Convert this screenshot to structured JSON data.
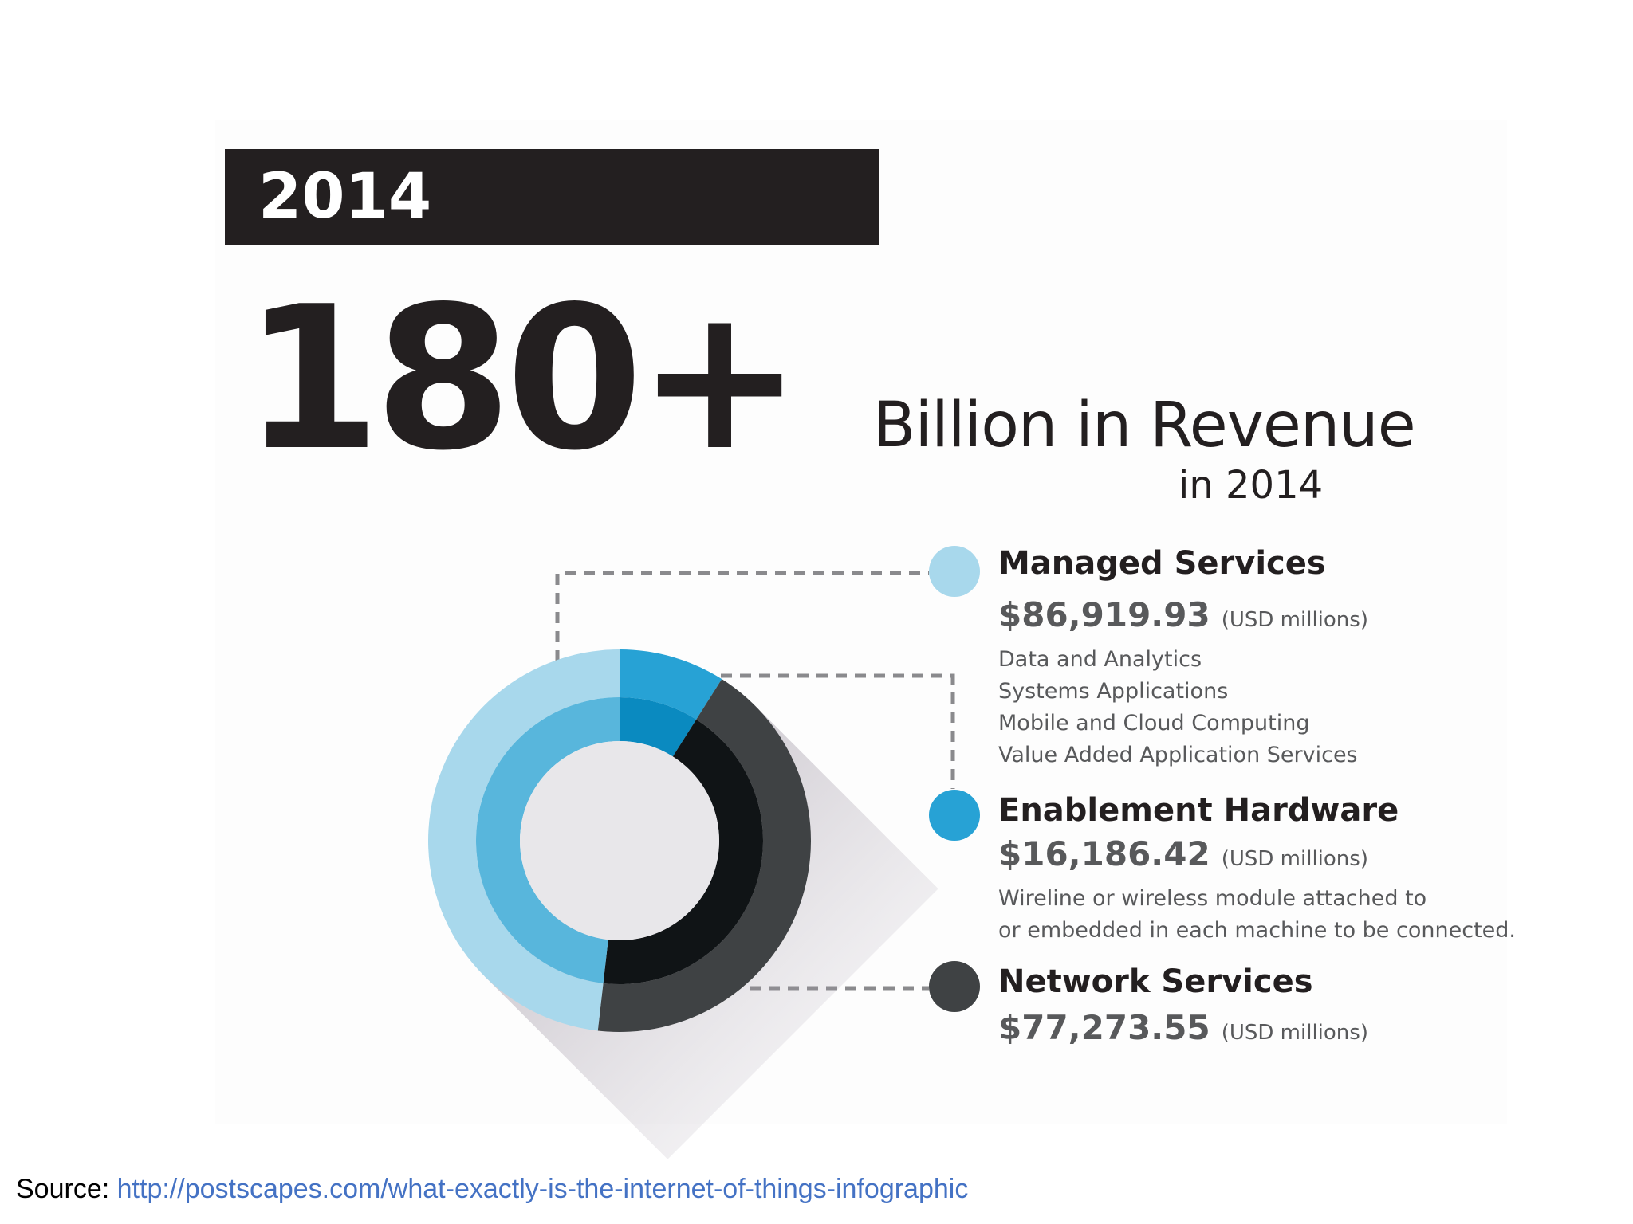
{
  "banner": {
    "year": "2014"
  },
  "headline": {
    "number": "180+",
    "text": "Billion in Revenue",
    "subtext": "in 2014"
  },
  "chart_data": {
    "type": "pie",
    "title": "",
    "unit": "(USD millions)",
    "categories": [
      "Managed Services",
      "Enablement Hardware",
      "Network Services"
    ],
    "values": [
      86919.93,
      16186.42,
      77273.55
    ],
    "value_labels": [
      "$86,919.93",
      "$16,186.42",
      "$77,273.55"
    ],
    "colors": [
      "#a8d8ec",
      "#27a2d5",
      "#3f4244"
    ],
    "inner_colors": [
      "#58b6dc",
      "#0a8ac0",
      "#101416"
    ],
    "descriptions": [
      [
        "Data and Analytics",
        "Systems Applications",
        "Mobile and Cloud Computing",
        "Value Added Application Services"
      ],
      [
        "Wireline or wireless module attached to",
        "or embedded in each machine to be connected."
      ],
      []
    ],
    "legend_position": "right",
    "grid": false
  },
  "source": {
    "label": "Source:",
    "url": "http://postscapes.com/what-exactly-is-the-internet-of-things-infographic"
  }
}
